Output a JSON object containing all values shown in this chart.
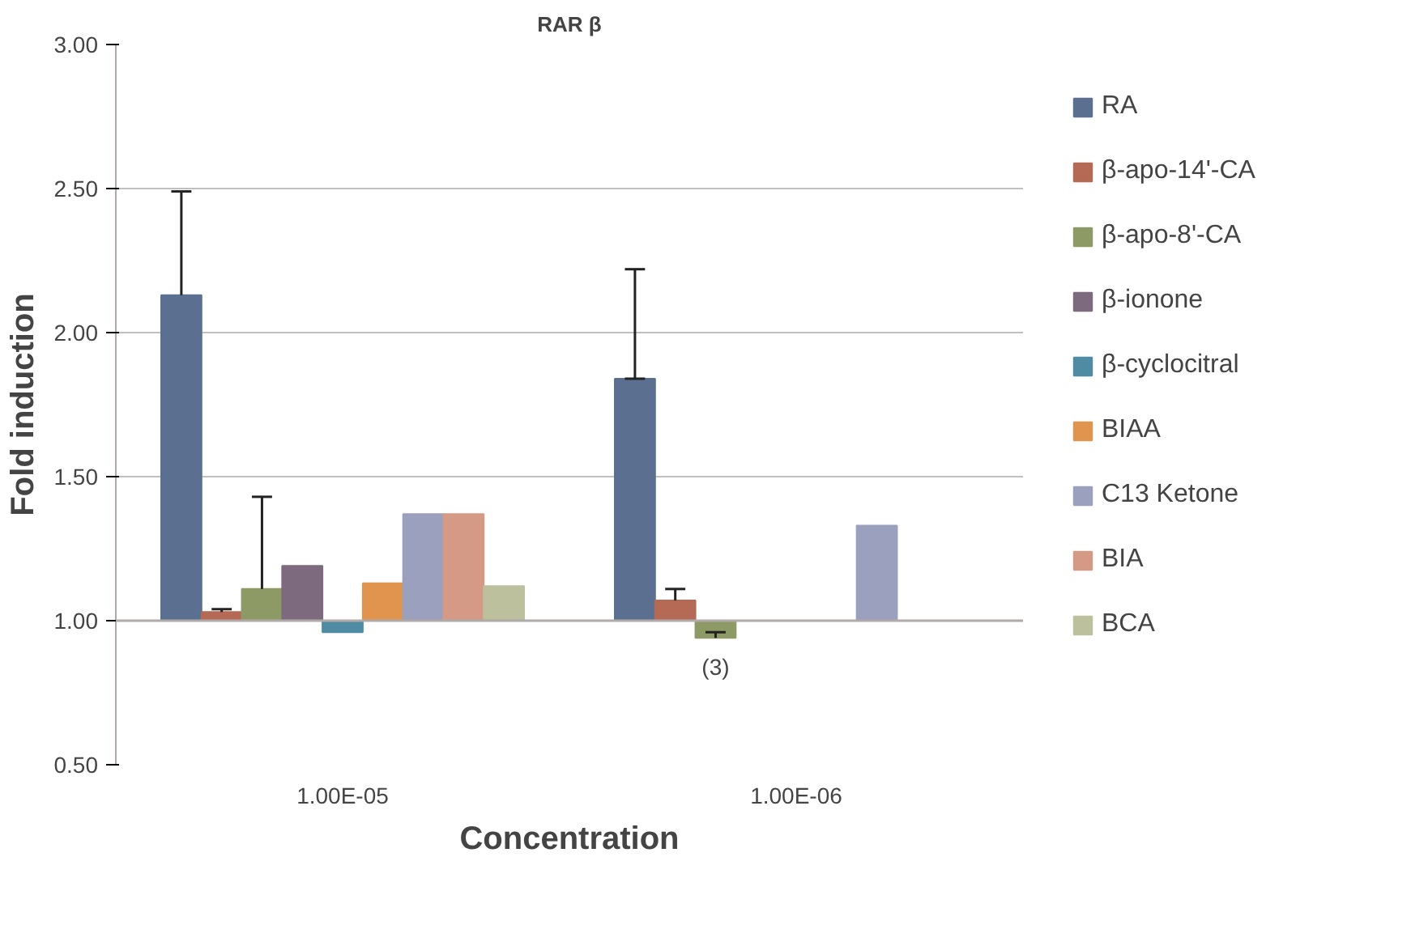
{
  "chart_data": {
    "type": "bar",
    "title": "RAR β",
    "xlabel": "Concentration",
    "ylabel": "Fold induction",
    "categories": [
      "1.00E-05",
      "1.00E-06"
    ],
    "series": [
      {
        "name": "RA",
        "color": "#5b7090",
        "values": [
          1.13,
          0.84
        ],
        "base": [
          1.0,
          1.0
        ],
        "errors": [
          [
            2.13,
            2.49
          ],
          [
            1.84,
            2.22
          ]
        ]
      },
      {
        "name": "β-apo-14'-CA",
        "color": "#b46a55",
        "values": [
          0.03,
          0.07
        ],
        "base": [
          1.0,
          1.0
        ],
        "errors": [
          [
            1.03,
            1.04
          ],
          [
            1.07,
            1.11
          ]
        ]
      },
      {
        "name": "β-apo-8'-CA",
        "color": "#8e9a66",
        "values": [
          0.11,
          -0.06
        ],
        "base": [
          1.0,
          1.0
        ],
        "errors": [
          [
            1.11,
            1.43
          ],
          [
            0.94,
            0.96
          ]
        ]
      },
      {
        "name": "β-ionone",
        "color": "#7d6a7e",
        "values": [
          0.19,
          null
        ],
        "base": [
          1.0,
          null
        ]
      },
      {
        "name": "β-cyclocitral",
        "color": "#4f8ca4",
        "values": [
          -0.04,
          null
        ],
        "base": [
          1.0,
          null
        ]
      },
      {
        "name": "BIAA",
        "color": "#e0944e",
        "values": [
          0.13,
          null
        ],
        "base": [
          1.0,
          null
        ]
      },
      {
        "name": "C13 Ketone",
        "color": "#9aa0bd",
        "values": [
          0.37,
          0.33
        ],
        "base": [
          1.0,
          1.0
        ]
      },
      {
        "name": "BIA",
        "color": "#d49a86",
        "values": [
          0.37,
          null
        ],
        "base": [
          1.0,
          null
        ]
      },
      {
        "name": "BCA",
        "color": "#bcc09c",
        "values": [
          0.12,
          null
        ],
        "base": [
          1.0,
          null
        ]
      }
    ],
    "ylim": [
      0.5,
      3.0
    ],
    "yticks": [
      {
        "value": 0.5,
        "label": "0.50"
      },
      {
        "value": 1.0,
        "label": "1.00"
      },
      {
        "value": 1.5,
        "label": "1.50"
      },
      {
        "value": 2.0,
        "label": "2.00"
      },
      {
        "value": 2.5,
        "label": "2.50"
      },
      {
        "value": 3.0,
        "label": "3.00"
      }
    ],
    "ref_lines": [
      {
        "axis": "y",
        "value": 1.0,
        "color": "#b0aaa8"
      }
    ],
    "grid": "y",
    "legend": "right",
    "annotations": [
      "(3)"
    ]
  }
}
